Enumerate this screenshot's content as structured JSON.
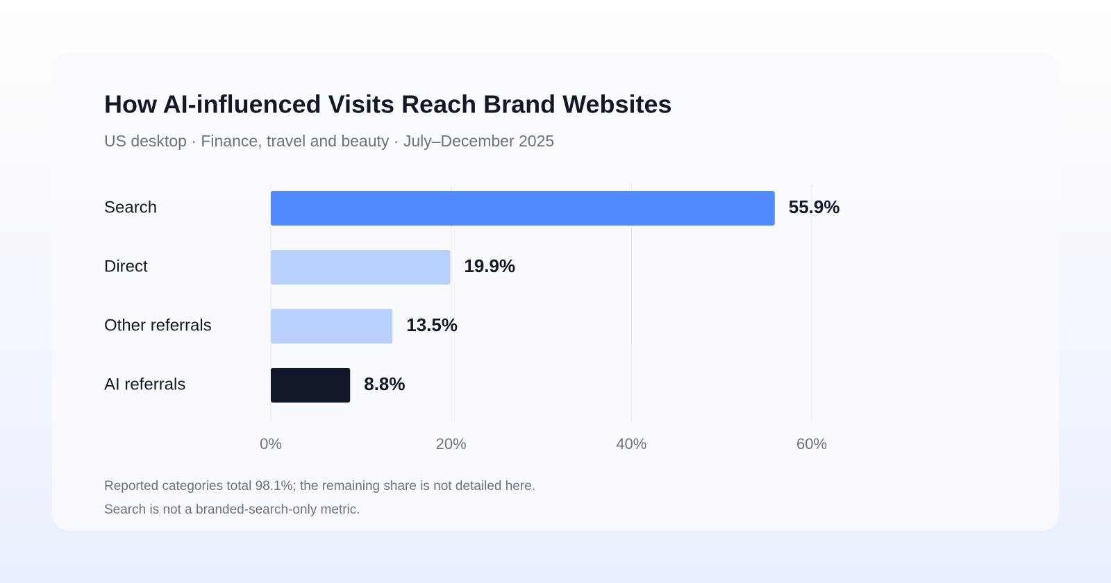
{
  "chart_data": {
    "type": "bar",
    "orientation": "horizontal",
    "title": "How AI-influenced Visits Reach Brand Websites",
    "subtitle": "US desktop · Finance, travel and beauty · July–December 2025",
    "categories": [
      "Search",
      "Direct",
      "Other referrals",
      "AI referrals"
    ],
    "values": [
      55.9,
      19.9,
      13.5,
      8.8
    ],
    "value_labels": [
      "55.9%",
      "19.9%",
      "13.5%",
      "8.8%"
    ],
    "colors": [
      "#528bff",
      "#bad0fd",
      "#bad0fd",
      "#111827"
    ],
    "xlim": [
      0,
      60
    ],
    "xticks": [
      {
        "value": 0,
        "label": "0%"
      },
      {
        "value": 20,
        "label": "20%"
      },
      {
        "value": 40,
        "label": "40%"
      },
      {
        "value": 60,
        "label": "60%"
      }
    ],
    "grid": true,
    "notes": [
      "Reported categories total 98.1%; the remaining share is not detailed here.",
      "Search is not a branded-search-only metric."
    ]
  }
}
